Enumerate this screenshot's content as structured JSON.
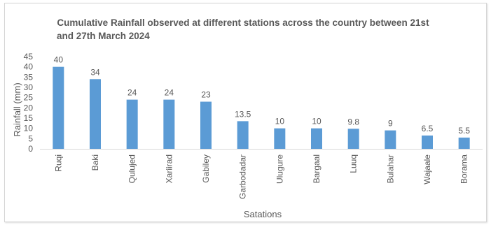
{
  "chart_data": {
    "type": "bar",
    "title_line1": "Cumulative Rainfall observed at different stations across the country between 21st",
    "title_line2": "and 27th March 2024",
    "xlabel": "Satations",
    "ylabel": "Rainfall (mm)",
    "categories": [
      "Ruqi",
      "Baki",
      "Qulujed",
      "Xariirad",
      "Gabiley",
      "Garbodadar",
      "Ulugure",
      "Bargaal",
      "Luuq",
      "Bulahar",
      "Wajaale",
      "Borama"
    ],
    "values": [
      40,
      34,
      24,
      24,
      23,
      13.5,
      10,
      10,
      9.8,
      9,
      6.5,
      5.5
    ],
    "data_labels": [
      "40",
      "34",
      "24",
      "24",
      "23",
      "13.5",
      "10",
      "10",
      "9.8",
      "9",
      "6.5",
      "5.5"
    ],
    "y_ticks": [
      "0",
      "5",
      "10",
      "15",
      "20",
      "25",
      "30",
      "35",
      "40",
      "45"
    ],
    "ylim": [
      0,
      45
    ],
    "grid": false,
    "legend": "none",
    "bar_color": "#5b9bd5"
  }
}
